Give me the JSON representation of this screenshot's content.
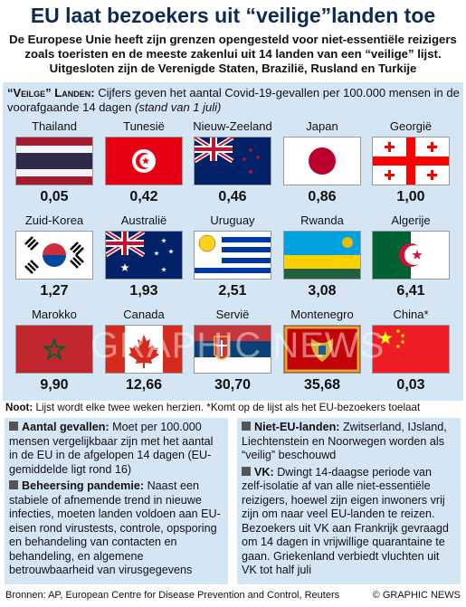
{
  "title": "EU laat bezoekers uit “veilige”landen toe",
  "subtitle": "De Europese Unie heeft zijn grenzen opengesteld voor niet-essentiële reizigers zoals toeristen en de meeste zakenlui uit 14 landen van een “veilige” lijst. Uitgesloten zijn de Verenigde Staten, Brazilië, Rusland en Turkije",
  "legend": {
    "label": "“Veilge” Landen:",
    "text": "Cijfers geven het aantal Covid-19-gevallen per 100.000 mensen in de voorafgaande 14 dagen",
    "date": "(stand van 1 juli)"
  },
  "countries": [
    {
      "name": "Thailand",
      "value": "0,05"
    },
    {
      "name": "Tunesië",
      "value": "0,42"
    },
    {
      "name": "Nieuw-Zeeland",
      "value": "0,46"
    },
    {
      "name": "Japan",
      "value": "0,86"
    },
    {
      "name": "Georgië",
      "value": "1,00"
    },
    {
      "name": "Zuid-Korea",
      "value": "1,27"
    },
    {
      "name": "Australië",
      "value": "1,93"
    },
    {
      "name": "Uruguay",
      "value": "2,51"
    },
    {
      "name": "Rwanda",
      "value": "3,08"
    },
    {
      "name": "Algerije",
      "value": "6,41"
    },
    {
      "name": "Marokko",
      "value": "9,90"
    },
    {
      "name": "Canada",
      "value": "12,66"
    },
    {
      "name": "Servië",
      "value": "30,70"
    },
    {
      "name": "Montenegro",
      "value": "35,68"
    },
    {
      "name": "China*",
      "value": "0,03"
    }
  ],
  "watermark": "GRAPHIC NEWS",
  "note": {
    "label": "Noot:",
    "text": "Lijst wordt elke twee weken herzien. *Komt op de lijst als het EU-bezoekers toelaat"
  },
  "sections": [
    [
      {
        "heading": "Aantal gevallen:",
        "text": "Moet per 100.000 mensen vergelijkbaar zijn met het aantal in de EU in de afgelopen 14 dagen (EU-gemiddelde ligt rond 16)"
      },
      {
        "heading": "Beheersing pandemie:",
        "text": "Naast een stabiele of afnemende trend in nieuwe infecties, moeten landen voldoen aan EU-eisen rond virustests, controle, opsporing en behandeling van contacten en behandeling, en algemene betrouwbaarheid van virusgegevens"
      }
    ],
    [
      {
        "heading": "Niet-EU-landen:",
        "text": "Zwitserland, IJsland, Liechtenstein en Noorwegen worden als “veilig” beschouwd"
      },
      {
        "heading": "VK:",
        "text": "Dwingt 14-daagse periode van zelf-isolatie af van alle niet-essentiële reizigers, hoewel zijn eigen inwoners vrij zijn om naar veel EU-landen te reizen. Bezoekers uit VK aan Frankrijk gevraagd om 14 dagen in vrijwillige quarantaine te gaan. Griekenland verbiedt vluchten uit VK tot half juli"
      }
    ]
  ],
  "sources": "Bronnen: AP, European Centre for Disease Prevention and Control, Reuters",
  "credit": "© GRAPHIC NEWS"
}
